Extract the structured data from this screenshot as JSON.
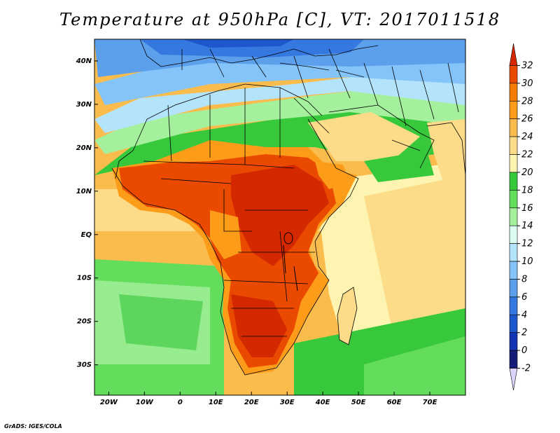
{
  "title": "Temperature at 950hPa [C], VT: 2017011518",
  "credit": "GrADS: IGES/COLA",
  "map": {
    "projection": "latlon",
    "lon_range": [
      -24,
      80
    ],
    "lat_range": [
      -37,
      45
    ],
    "lat_ticks": [
      {
        "value": 40,
        "label": "40N"
      },
      {
        "value": 30,
        "label": "30N"
      },
      {
        "value": 20,
        "label": "20N"
      },
      {
        "value": 10,
        "label": "10N"
      },
      {
        "value": 0,
        "label": "EQ"
      },
      {
        "value": -10,
        "label": "10S"
      },
      {
        "value": -20,
        "label": "20S"
      },
      {
        "value": -30,
        "label": "30S"
      }
    ],
    "lon_ticks": [
      {
        "value": -20,
        "label": "20W"
      },
      {
        "value": -10,
        "label": "10W"
      },
      {
        "value": 0,
        "label": "0"
      },
      {
        "value": 10,
        "label": "10E"
      },
      {
        "value": 20,
        "label": "20E"
      },
      {
        "value": 30,
        "label": "30E"
      },
      {
        "value": 40,
        "label": "40E"
      },
      {
        "value": 50,
        "label": "50E"
      },
      {
        "value": 60,
        "label": "60E"
      },
      {
        "value": 70,
        "label": "70E"
      }
    ]
  },
  "colorbar": {
    "levels": [
      "32",
      "30",
      "28",
      "26",
      "24",
      "22",
      "20",
      "18",
      "16",
      "14",
      "12",
      "10",
      "8",
      "6",
      "4",
      "2",
      "0",
      "-2"
    ],
    "colors_top_to_bottom": [
      "#d42800",
      "#ea4a00",
      "#f47c00",
      "#fc9c18",
      "#fbbc4e",
      "#fcdc88",
      "#fcf4b0",
      "#38c83c",
      "#64dc5c",
      "#a4f09c",
      "#dcfcf0",
      "#b4e4fc",
      "#84c4f8",
      "#5ca0ec",
      "#3478e0",
      "#1c58cc",
      "#1434b4",
      "#141c78",
      "#d8d4fc"
    ]
  }
}
